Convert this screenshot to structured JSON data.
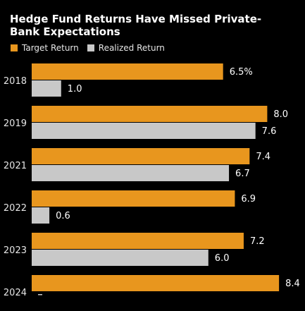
{
  "chart_data": {
    "type": "bar",
    "orientation": "horizontal",
    "title": "Hedge Fund Returns Have Missed Private-Bank Expectations",
    "categories": [
      "2018",
      "2019",
      "2021",
      "2022",
      "2023",
      "2024"
    ],
    "series": [
      {
        "name": "Target Return",
        "color": "#E8961E",
        "values": [
          6.5,
          8.0,
          7.4,
          6.9,
          7.2,
          8.4
        ],
        "labels": [
          "6.5%",
          "8.0",
          "7.4",
          "6.9",
          "7.2",
          "8.4"
        ]
      },
      {
        "name": "Realized Return",
        "color": "#C8C8C8",
        "values": [
          1.0,
          7.6,
          6.7,
          0.6,
          6.0,
          null
        ],
        "labels": [
          "1.0",
          "7.6",
          "6.7",
          "0.6",
          "6.0",
          ""
        ]
      }
    ],
    "xlim": [
      0,
      9.2
    ],
    "grid": false,
    "legend_position": "top-left"
  }
}
